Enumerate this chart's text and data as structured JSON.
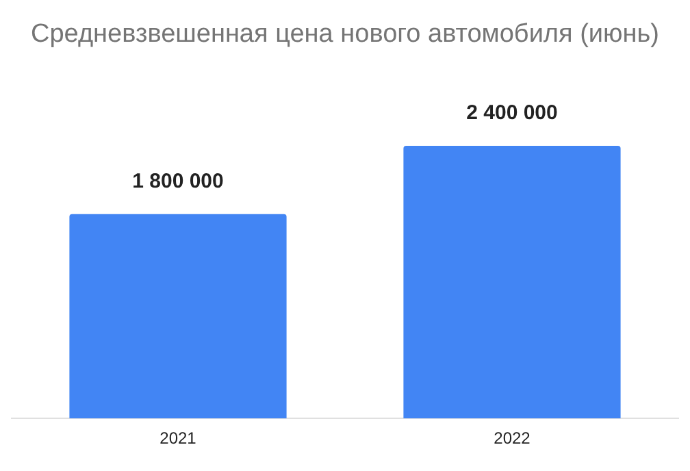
{
  "chart_data": {
    "type": "bar",
    "title": "Средневзвешенная цена нового автомобиля (июнь)",
    "categories": [
      "2021",
      "2022"
    ],
    "series": [
      {
        "color": "#4285f4",
        "values": [
          1800000,
          2400000
        ],
        "value_labels": [
          "1 800 000",
          "2 400 000"
        ]
      }
    ],
    "legend": false,
    "grid": false
  }
}
